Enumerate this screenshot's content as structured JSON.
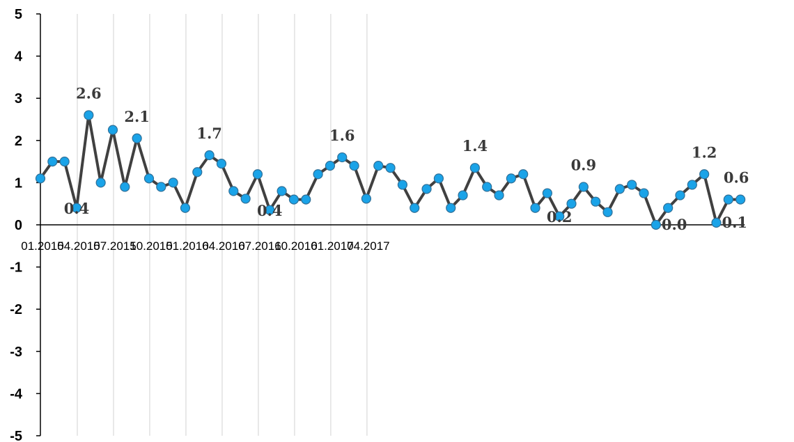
{
  "chart_data": {
    "type": "line",
    "title": "",
    "xlabel": "",
    "ylabel": "",
    "ylim": [
      -5,
      5
    ],
    "yticks": [
      "-5",
      "-4",
      "-3",
      "-2",
      "-1",
      "0",
      "1",
      "2",
      "3",
      "4",
      "5"
    ],
    "x_tick_labels": [
      "01.2015",
      "04.2015",
      "07.2015",
      "10.2015",
      "01.2016",
      "04.2016",
      "07.2016",
      "10.2016",
      "01.2017",
      "04.2017"
    ],
    "grid": "vertical",
    "legend": "none",
    "colors": {
      "line": "#404040",
      "marker": "#1aa3e8",
      "marker_edge": "#2f6f97",
      "grid": "#d9d9d9"
    },
    "series": [
      {
        "values": [
          1.1,
          1.5,
          1.5,
          0.4,
          2.6,
          1.0,
          2.25,
          0.9,
          2.05,
          1.1,
          0.9,
          1.0,
          0.4,
          1.25,
          1.65,
          1.45,
          0.8,
          0.62,
          1.2,
          0.35,
          0.8,
          0.6,
          0.6,
          1.2,
          1.4,
          1.6,
          1.4,
          0.62,
          1.4,
          1.35,
          0.95,
          0.4,
          0.85,
          1.1,
          0.4,
          0.7,
          1.35,
          0.9,
          0.7,
          1.1,
          1.2,
          0.4,
          0.75,
          0.2,
          0.5,
          0.9,
          0.55,
          0.3,
          0.85,
          0.95,
          0.75,
          0.0,
          0.4,
          0.7,
          0.95,
          1.2,
          0.05,
          0.6,
          0.6
        ]
      }
    ],
    "data_labels": [
      {
        "index": 3,
        "text": "0.4",
        "pos": "below"
      },
      {
        "index": 4,
        "text": "2.6",
        "pos": "above"
      },
      {
        "index": 8,
        "text": "2.1",
        "pos": "above"
      },
      {
        "index": 14,
        "text": "1.7",
        "pos": "above"
      },
      {
        "index": 19,
        "text": "0.4",
        "pos": "below"
      },
      {
        "index": 25,
        "text": "1.6",
        "pos": "above"
      },
      {
        "index": 36,
        "text": "1.4",
        "pos": "above"
      },
      {
        "index": 43,
        "text": "0.2",
        "pos": "below"
      },
      {
        "index": 45,
        "text": "0.9",
        "pos": "above"
      },
      {
        "index": 51,
        "text": "0.0",
        "pos": "right"
      },
      {
        "index": 55,
        "text": "1.2",
        "pos": "above"
      },
      {
        "index": 56,
        "text": "0.1",
        "pos": "right"
      },
      {
        "index": 58,
        "text": "0.6",
        "pos": "above"
      }
    ]
  }
}
